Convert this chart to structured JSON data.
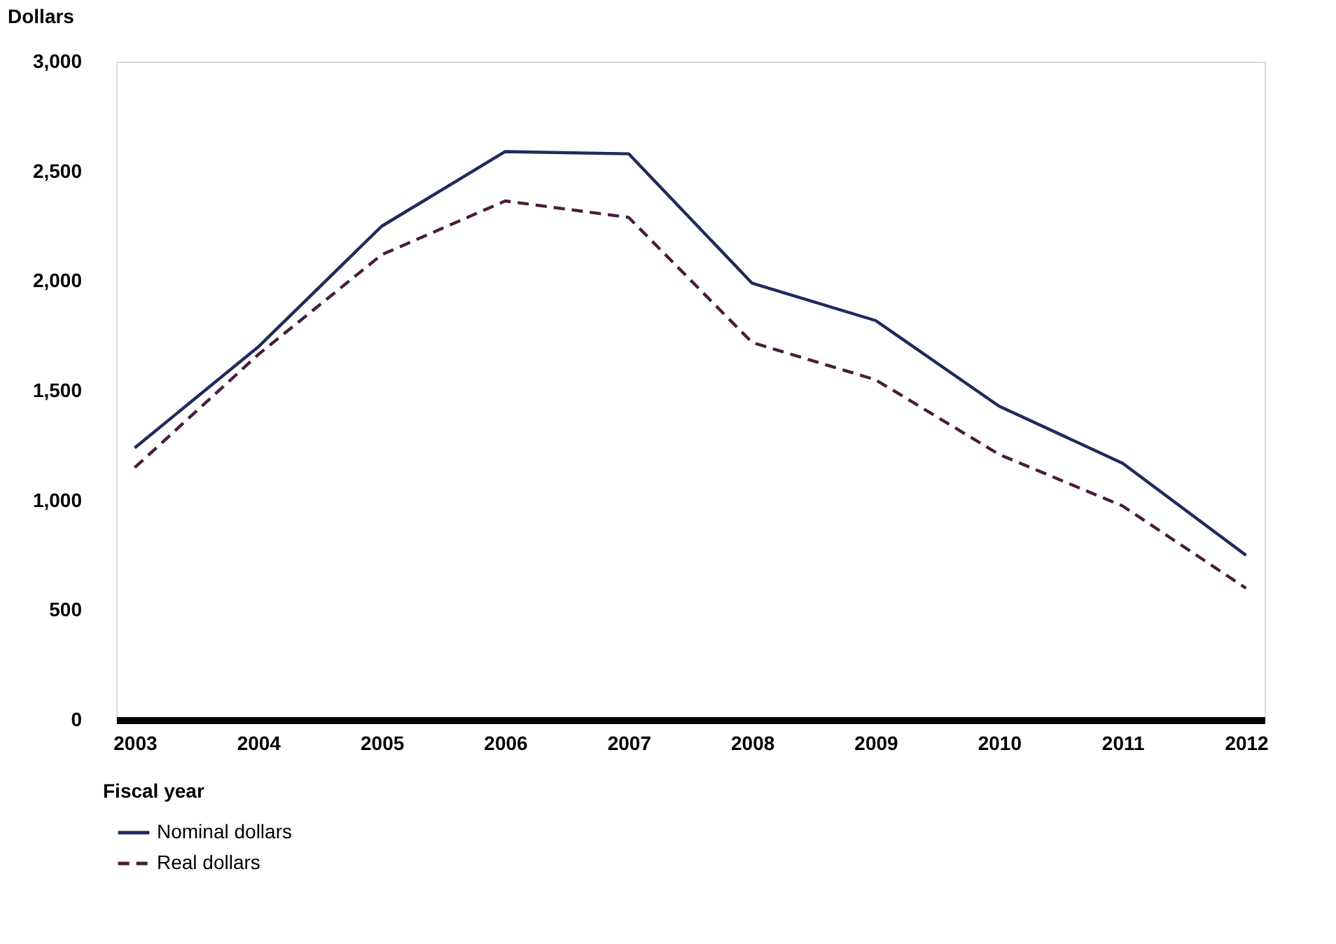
{
  "chart_data": {
    "type": "line",
    "ylabel": "Dollars",
    "xlabel": "Fiscal year",
    "categories": [
      "2003",
      "2004",
      "2005",
      "2006",
      "2007",
      "2008",
      "2009",
      "2010",
      "2011",
      "2012"
    ],
    "series": [
      {
        "name": "Nominal dollars",
        "color": "#1f2a5c",
        "line_style": "solid",
        "values": [
          1240,
          1700,
          2250,
          2590,
          2580,
          1990,
          1820,
          1430,
          1170,
          750
        ]
      },
      {
        "name": "Real dollars",
        "color": "#4a1c3c",
        "line_style": "dashed",
        "values": [
          1150,
          1665,
          2120,
          2365,
          2290,
          1720,
          1550,
          1210,
          975,
          600
        ]
      }
    ],
    "ylim": [
      0,
      3000
    ],
    "yticks": [
      0,
      500,
      {
        "value": 1000,
        "label": "1,000"
      },
      {
        "value": 1500,
        "label": "1,500"
      },
      {
        "value": 2000,
        "label": "2,000"
      },
      {
        "value": 2500,
        "label": "2,500"
      },
      {
        "value": 3000,
        "label": "3,000"
      }
    ],
    "grid": false,
    "legend": "bottom",
    "marker": "none"
  }
}
